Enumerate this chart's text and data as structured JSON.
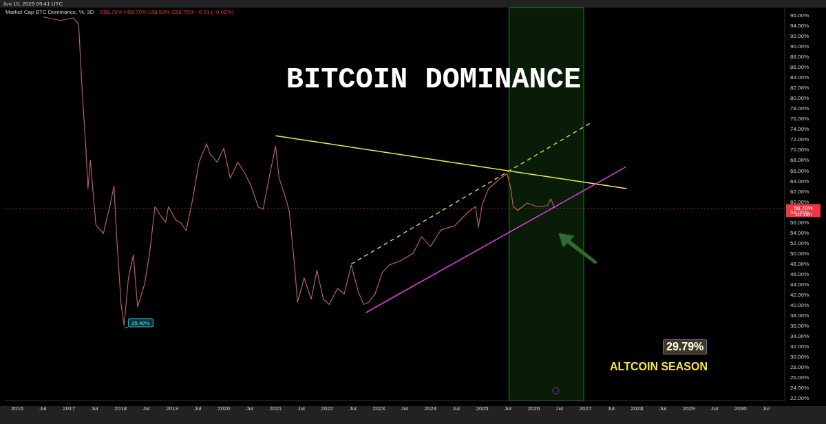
{
  "chart_data": {
    "type": "line",
    "title": "BITCOIN DOMINANCE",
    "subtitle": "Market Cap BTC Dominance, %, 3D",
    "annotations": [
      "Jun 10, 2026 09:41 UTC",
      "O58.70% H58.70% L58.53% C58.70% −0.01 (−0.02%)",
      "1d 15h",
      "ALTCOIN SEASON",
      {
        "text": "35.49%",
        "x": "2018-01-26",
        "y": 35.49
      },
      "29.79%"
    ],
    "marker": "none",
    "xlim": [
      "2015-10-10",
      "2030-11-10"
    ],
    "xticks": [
      {
        "value": "2016",
        "label": "2016"
      },
      {
        "value": "2016-07",
        "label": "Jul"
      },
      {
        "value": "2017",
        "label": "2017"
      },
      {
        "value": "2017-07",
        "label": "Jul"
      },
      {
        "value": "2018",
        "label": "2018"
      },
      {
        "value": "2018-07",
        "label": "Jul"
      },
      {
        "value": "2019",
        "label": "2019"
      },
      {
        "value": "2019-07",
        "label": "Jul"
      },
      {
        "value": "2020",
        "label": "2020"
      },
      {
        "value": "2020-07",
        "label": "Jul"
      },
      {
        "value": "2021",
        "label": "2021"
      },
      {
        "value": "2021-07",
        "label": "Jul"
      },
      {
        "value": "2022",
        "label": "2022"
      },
      {
        "value": "2022-07",
        "label": "Jul"
      },
      {
        "value": "2023",
        "label": "2023"
      },
      {
        "value": "2023-07",
        "label": "Jul"
      },
      {
        "value": "2024",
        "label": "2024"
      },
      {
        "value": "2024-07",
        "label": "Jul"
      },
      {
        "value": "2025",
        "label": "2025"
      },
      {
        "value": "2025-07",
        "label": "Jul"
      },
      {
        "value": "2026",
        "label": "2026"
      },
      {
        "value": "2026-07",
        "label": "Jul"
      },
      {
        "value": "2027",
        "label": "2027"
      },
      {
        "value": "2027-07",
        "label": "Jul"
      },
      {
        "value": "2028",
        "label": "2028"
      },
      {
        "value": "2028-07",
        "label": "Jul"
      },
      {
        "value": "2029",
        "label": "2029"
      },
      {
        "value": "2029-07",
        "label": "Jul"
      },
      {
        "value": "2030",
        "label": "2030"
      },
      {
        "value": "2030-07",
        "label": "Jul"
      }
    ],
    "ylim": [
      21.5,
      97.5
    ],
    "yticks": [
      {
        "value": 22,
        "label": "22.00%"
      },
      {
        "value": 24,
        "label": "24.00%"
      },
      {
        "value": 26,
        "label": "26.00%"
      },
      {
        "value": 28,
        "label": "28.00%"
      },
      {
        "value": 30,
        "label": "30.00%"
      },
      {
        "value": 32,
        "label": "32.00%"
      },
      {
        "value": 34,
        "label": "34.00%"
      },
      {
        "value": 36,
        "label": "36.00%"
      },
      {
        "value": 38,
        "label": "38.00%"
      },
      {
        "value": 40,
        "label": "40.00%"
      },
      {
        "value": 42,
        "label": "42.00%"
      },
      {
        "value": 44,
        "label": "44.00%"
      },
      {
        "value": 46,
        "label": "46.00%"
      },
      {
        "value": 48,
        "label": "48.00%"
      },
      {
        "value": 50,
        "label": "50.00%"
      },
      {
        "value": 52,
        "label": "52.00%"
      },
      {
        "value": 54,
        "label": "54.00%"
      },
      {
        "value": 56,
        "label": "56.00%"
      },
      {
        "value": 58,
        "label": "58.00%"
      },
      {
        "value": 60,
        "label": "60.00%"
      },
      {
        "value": 62,
        "label": "62.00%"
      },
      {
        "value": 64,
        "label": "64.00%"
      },
      {
        "value": 66,
        "label": "66.00%"
      },
      {
        "value": 68,
        "label": "68.00%"
      },
      {
        "value": 70,
        "label": "70.00%"
      },
      {
        "value": 72,
        "label": "72.00%"
      },
      {
        "value": 74,
        "label": "74.00%"
      },
      {
        "value": 76,
        "label": "76.00%"
      },
      {
        "value": 78,
        "label": "78.00%"
      },
      {
        "value": 80,
        "label": "80.00%"
      },
      {
        "value": 82,
        "label": "82.00%"
      },
      {
        "value": 84,
        "label": "84.00%"
      },
      {
        "value": 86,
        "label": "86.00%"
      },
      {
        "value": 88,
        "label": "88.00%"
      },
      {
        "value": 90,
        "label": "90.00%"
      },
      {
        "value": 92,
        "label": "92.00%"
      },
      {
        "value": 94,
        "label": "94.00%"
      },
      {
        "value": 96,
        "label": "96.00%"
      }
    ],
    "ref_lines": [
      {
        "axis": "y",
        "value": 58.7,
        "label": "58.70%",
        "color": "#f23645",
        "line_style": "dotted"
      }
    ],
    "bands": [
      {
        "axis": "x",
        "from": "2025-07-10",
        "to": "2026-12-20",
        "color": "#2e9b2e"
      }
    ],
    "series": [
      {
        "color": "#b8605f",
        "x": [
          "2016-07",
          "2016-11",
          "2017-02",
          "2017-03-10",
          "2017-04-05",
          "2017-05-01",
          "2017-05-15",
          "2017-06-01",
          "2017-07-10",
          "2017-09-01",
          "2017-10-20",
          "2017-11-15",
          "2017-12-05",
          "2018-01-05",
          "2018-01-26",
          "2018-02-25",
          "2018-04-01",
          "2018-05-01",
          "2018-06-20",
          "2018-07-26",
          "2018-09-01",
          "2018-10-05",
          "2018-11-15",
          "2018-12-05",
          "2019-01-26",
          "2019-03-01",
          "2019-04-10",
          "2019-05-26",
          "2019-07-10",
          "2019-09-01",
          "2019-09-25",
          "2019-11-15",
          "2020-01-01",
          "2020-02-15",
          "2020-04-08",
          "2020-05-26",
          "2020-07-12",
          "2020-09-01",
          "2020-10-05",
          "2020-11-15",
          "2021-01-01",
          "2021-01-26",
          "2021-03-15",
          "2021-04-08",
          "2021-05-15",
          "2021-06-05",
          "2021-07-22",
          "2021-09-10",
          "2021-10-20",
          "2021-12-05",
          "2022-01-15",
          "2022-03-15",
          "2022-05-01",
          "2022-06-20",
          "2022-08-08",
          "2022-09-15",
          "2022-10-20",
          "2022-12-05",
          "2023-01-26",
          "2023-03-15",
          "2023-06-01",
          "2023-09-01",
          "2023-10-30",
          "2024-01-01",
          "2024-03-15",
          "2024-06-20",
          "2024-09-25",
          "2024-11-15",
          "2024-12-05",
          "2025-01-01",
          "2025-02-15",
          "2025-05-01",
          "2025-06-26",
          "2025-07-22",
          "2025-08-08",
          "2025-09-10",
          "2025-11-15",
          "2026-01-26",
          "2026-04-08",
          "2026-05-01",
          "2026-05-30"
        ],
        "values": [
          95.7,
          95.0,
          95.5,
          94.3,
          81,
          70,
          62.5,
          68,
          55.5,
          53.8,
          59.5,
          63,
          52.8,
          40,
          36,
          45.2,
          49.7,
          39.6,
          44.1,
          50.2,
          59,
          57.5,
          56,
          59,
          56.4,
          55.9,
          54.4,
          60.5,
          67.6,
          71.2,
          69.2,
          67.6,
          70.3,
          64.5,
          67.6,
          65.6,
          63,
          58.9,
          58.5,
          64.5,
          70.7,
          64.5,
          60.5,
          58,
          47.7,
          40.5,
          45.2,
          41.1,
          46.7,
          41.1,
          40.1,
          43.2,
          42.1,
          47.7,
          42.6,
          40.1,
          40.5,
          42.1,
          46.3,
          47.7,
          48.5,
          50,
          53.2,
          51.3,
          54.5,
          55.3,
          58,
          59,
          55,
          59.4,
          62.5,
          64.3,
          65.4,
          62.5,
          59,
          58.3,
          59.7,
          59,
          59.2,
          60.5,
          58.7
        ]
      },
      {
        "type": "line",
        "color": "#f2ee3a",
        "x": [
          "2021-01-01",
          "2027-10-20"
        ],
        "values": [
          72.7,
          62.5
        ]
      },
      {
        "type": "line",
        "color": "#d8d43c",
        "line_style": "dashed",
        "x": [
          "2022-06-20",
          "2027-02-01"
        ],
        "values": [
          47.9,
          75.1
        ]
      },
      {
        "type": "line",
        "color": "#e03ce0",
        "x": [
          "2022-10-01",
          "2027-10-15"
        ],
        "values": [
          38.5,
          66.7
        ]
      }
    ]
  }
}
